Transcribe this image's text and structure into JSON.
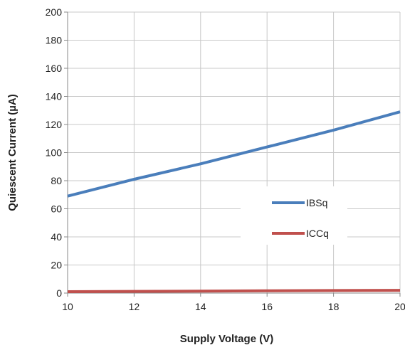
{
  "chart_data": {
    "type": "line",
    "title": "",
    "xlabel": "Supply Voltage (V)",
    "ylabel": "Quiescent Current (µA)",
    "xlim": [
      10,
      20
    ],
    "ylim": [
      0,
      200
    ],
    "x_ticks": [
      10,
      12,
      14,
      16,
      18,
      20
    ],
    "y_ticks": [
      0,
      20,
      40,
      60,
      80,
      100,
      120,
      140,
      160,
      180,
      200
    ],
    "x_tick_labels": [
      "10",
      "12",
      "14",
      "16",
      "18",
      "20"
    ],
    "y_tick_labels": [
      "0",
      "20",
      "40",
      "60",
      "80",
      "100",
      "120",
      "140",
      "160",
      "180",
      "200"
    ],
    "grid": true,
    "legend_position": "right",
    "series": [
      {
        "name": "IBSq",
        "color": "#4a7ebb",
        "x": [
          10,
          12,
          14,
          16,
          18,
          20
        ],
        "y": [
          69,
          81,
          92,
          104,
          116,
          129
        ]
      },
      {
        "name": "ICCq",
        "color": "#c0504d",
        "x": [
          10,
          12,
          14,
          16,
          18,
          20
        ],
        "y": [
          1,
          1.2,
          1.4,
          1.6,
          1.8,
          2
        ]
      }
    ]
  }
}
